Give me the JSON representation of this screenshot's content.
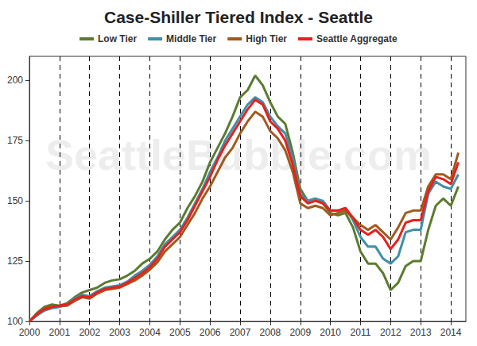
{
  "chart_data": {
    "type": "line",
    "title": "Case-Shiller Tiered Index - Seattle",
    "annotations": [
      "SeattleBubble.com"
    ],
    "x": [
      2000,
      2000.25,
      2000.5,
      2000.75,
      2001,
      2001.25,
      2001.5,
      2001.75,
      2002,
      2002.25,
      2002.5,
      2002.75,
      2003,
      2003.25,
      2003.5,
      2003.75,
      2004,
      2004.25,
      2004.5,
      2004.75,
      2005,
      2005.25,
      2005.5,
      2005.75,
      2006,
      2006.25,
      2006.5,
      2006.75,
      2007,
      2007.25,
      2007.5,
      2007.75,
      2008,
      2008.25,
      2008.5,
      2008.75,
      2009,
      2009.25,
      2009.5,
      2009.75,
      2010,
      2010.25,
      2010.5,
      2010.75,
      2011,
      2011.25,
      2011.5,
      2011.75,
      2012,
      2012.25,
      2012.5,
      2012.75,
      2013,
      2013.25,
      2013.5,
      2013.75,
      2014,
      2014.25
    ],
    "series": [
      {
        "name": "Low Tier",
        "color": "#5b7b30",
        "values": [
          100,
          103.5,
          106,
          107,
          106.5,
          107.5,
          110,
          112,
          113,
          114,
          116,
          117,
          117.5,
          119,
          121,
          124,
          126,
          129,
          134,
          138,
          141,
          147,
          152,
          158,
          166,
          172,
          178,
          185,
          193,
          196,
          202,
          198,
          191,
          185,
          182,
          170,
          155,
          150,
          151,
          149,
          145,
          144,
          145,
          139,
          129,
          124,
          124,
          120,
          113,
          116,
          123,
          125,
          125,
          138,
          148,
          151,
          148,
          156
        ]
      },
      {
        "name": "Middle Tier",
        "color": "#3f8fa8",
        "values": [
          100,
          102.5,
          104.5,
          105.5,
          106,
          107,
          109.5,
          111,
          110.5,
          112.5,
          114,
          114.5,
          115,
          116.5,
          119,
          121,
          123.5,
          127,
          132,
          135,
          138,
          143,
          149,
          155,
          162,
          168,
          175,
          180,
          185,
          190,
          193,
          191,
          185,
          181,
          178,
          168,
          153,
          150,
          151,
          150,
          146,
          146,
          147,
          142,
          135,
          131,
          131,
          126,
          124,
          127,
          137,
          138,
          138,
          153,
          158,
          156,
          155,
          161
        ]
      },
      {
        "name": "High Tier",
        "color": "#a05a1c",
        "values": [
          100,
          103,
          105.5,
          106,
          106.5,
          106.5,
          108.5,
          110,
          109.5,
          111.5,
          113,
          113.5,
          114,
          115.5,
          117,
          119,
          121.5,
          124.5,
          129,
          132,
          135,
          140,
          145,
          151,
          156,
          162,
          168,
          172,
          178,
          183,
          187,
          185,
          179,
          176,
          171,
          162,
          149,
          147,
          148,
          147,
          144,
          145,
          146,
          143,
          140,
          138,
          140,
          137,
          134,
          139,
          145,
          146,
          146,
          156,
          161,
          161,
          159,
          170
        ]
      },
      {
        "name": "Seattle Aggregate",
        "color": "#e8201e",
        "values": [
          100,
          103,
          105,
          106,
          106.5,
          107,
          109,
          110.5,
          110,
          112,
          113.5,
          114,
          114.5,
          116,
          118,
          120,
          122.5,
          126,
          131,
          134,
          137,
          142,
          148,
          154,
          160,
          167,
          173,
          178,
          183,
          188,
          192,
          190,
          183,
          180,
          175,
          165,
          152,
          149,
          150,
          149,
          146,
          146,
          147,
          143,
          138,
          136,
          138,
          135,
          130,
          134,
          141,
          142,
          142,
          154,
          160,
          159,
          157,
          166
        ]
      }
    ],
    "xlim": [
      2000,
      2014.5
    ],
    "xticks": [
      2000,
      2001,
      2002,
      2003,
      2004,
      2005,
      2006,
      2007,
      2008,
      2009,
      2010,
      2011,
      2012,
      2013,
      2014
    ],
    "ylim": [
      100,
      210
    ],
    "yticks": [
      100,
      125,
      150,
      175,
      200
    ],
    "grid": true,
    "legend": "top"
  }
}
